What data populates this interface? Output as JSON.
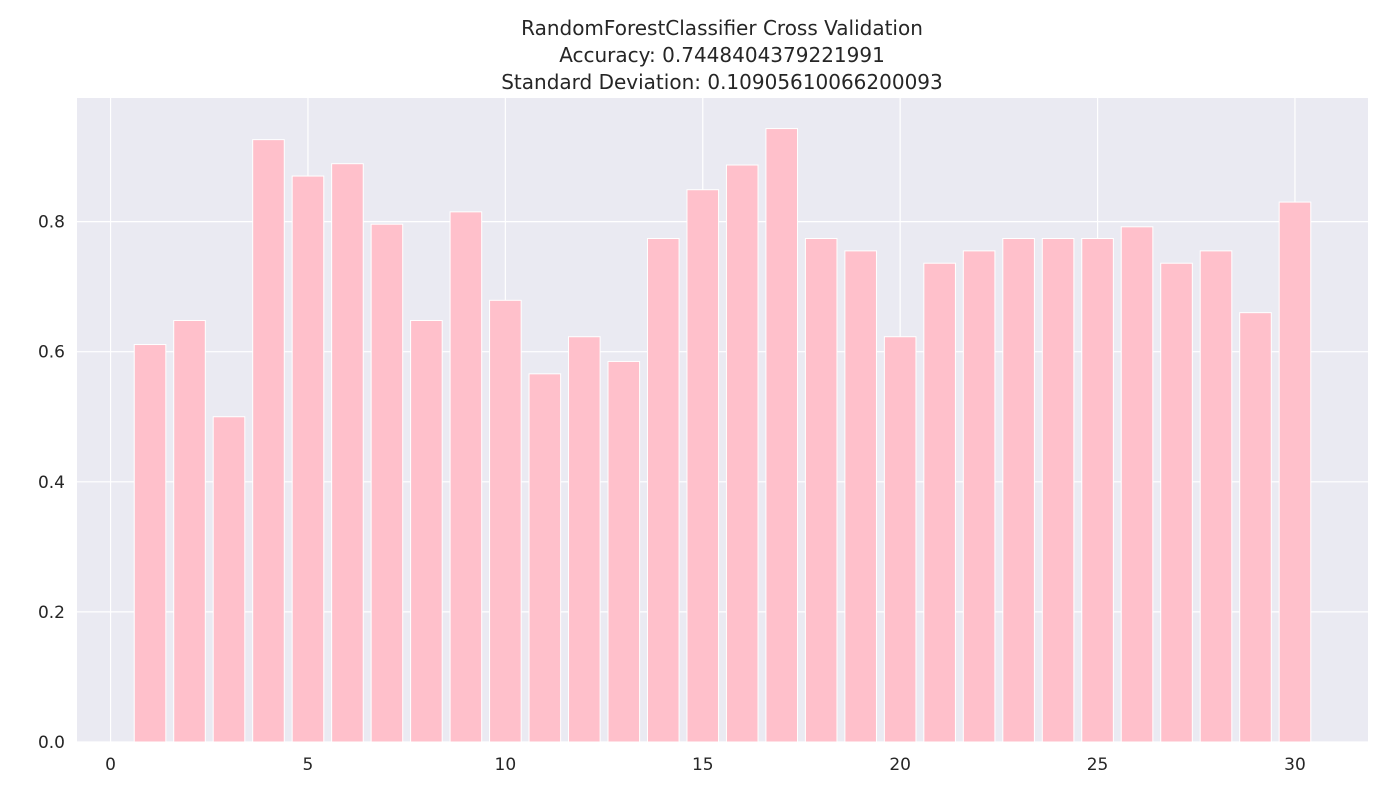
{
  "chart_data": {
    "type": "bar",
    "title": "RandomForestClassifier Cross Validation",
    "subtitle_lines": [
      "Accuracy: 0.7448404379221991",
      "Standard Deviation: 0.10905610066200093"
    ],
    "xlabel": "",
    "ylabel": "",
    "x": [
      1,
      2,
      3,
      4,
      5,
      6,
      7,
      8,
      9,
      10,
      11,
      12,
      13,
      14,
      15,
      16,
      17,
      18,
      19,
      20,
      21,
      22,
      23,
      24,
      25,
      26,
      27,
      28,
      29,
      30
    ],
    "values": [
      0.611,
      0.648,
      0.5,
      0.926,
      0.87,
      0.889,
      0.796,
      0.648,
      0.815,
      0.679,
      0.566,
      0.623,
      0.585,
      0.774,
      0.849,
      0.887,
      0.943,
      0.774,
      0.755,
      0.623,
      0.736,
      0.755,
      0.774,
      0.774,
      0.774,
      0.792,
      0.736,
      0.755,
      0.66,
      0.83
    ],
    "xlim": [
      -0.85,
      31.85
    ],
    "ylim": [
      0,
      0.99
    ],
    "xticks": [
      0,
      5,
      10,
      15,
      20,
      25,
      30
    ],
    "yticks": [
      0.0,
      0.2,
      0.4,
      0.6,
      0.8
    ],
    "ytick_labels": [
      "0.0",
      "0.2",
      "0.4",
      "0.6",
      "0.8"
    ],
    "grid": true,
    "colors": {
      "bar": "#ffc0cb",
      "plot_bg": "#eaeaf2",
      "grid": "#ffffff",
      "text": "#262626"
    }
  }
}
